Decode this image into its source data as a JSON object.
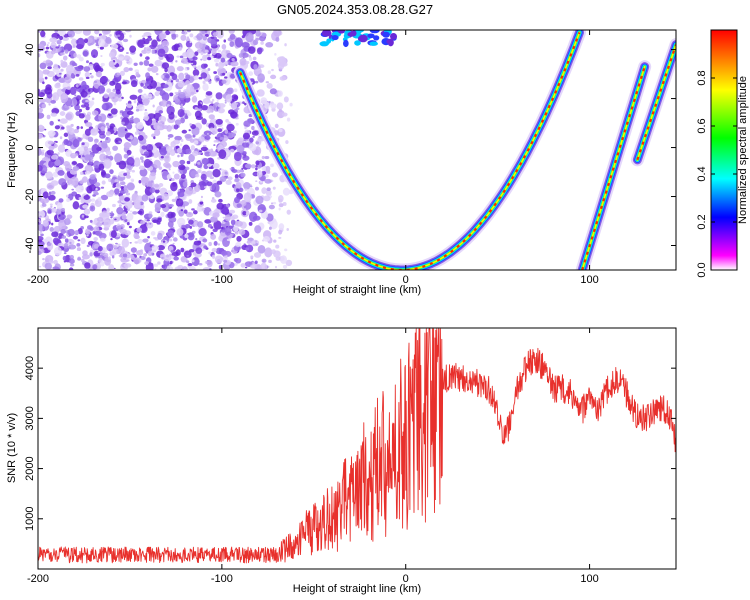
{
  "title": "GN05.2024.353.08.28.G27",
  "chart_data": [
    {
      "type": "heatmap",
      "xlabel": "Height of straight line (km)",
      "ylabel": "Frequency (Hz)",
      "xlim": [
        -200,
        147
      ],
      "ylim": [
        -50,
        48
      ],
      "xticks": [
        -200,
        -100,
        0,
        100
      ],
      "yticks": [
        -40,
        -20,
        0,
        20,
        40
      ],
      "colorbar": {
        "label": "Normalized spectral amplitude",
        "range": [
          0,
          1
        ],
        "ticks": [
          0.0,
          0.2,
          0.4,
          0.6,
          0.8
        ],
        "tick_labels": [
          "0.0",
          "0.2",
          "0.4",
          "0.6",
          "0.8"
        ],
        "colormap": [
          "#ffffff",
          "#ff00ff",
          "#0000ff",
          "#00ffff",
          "#00ff00",
          "#ffff00",
          "#ff0000"
        ]
      },
      "noise_region": {
        "x": [
          -200,
          -70
        ],
        "y": [
          -50,
          48
        ]
      },
      "tracks": [
        {
          "shape": "parabola",
          "vertex_x": -2,
          "vertex_y": -50,
          "x_range": [
            -90,
            95
          ],
          "y_end": 48
        },
        {
          "shape": "line",
          "points": [
            [
              96,
              -50
            ],
            [
              130,
              33
            ]
          ]
        },
        {
          "shape": "line",
          "points": [
            [
              126,
              -5
            ],
            [
              147,
              42
            ]
          ]
        }
      ]
    },
    {
      "type": "line",
      "xlabel": "Height of straight line (km)",
      "ylabel": "SNR (10 * v/v)",
      "xlim": [
        -200,
        147
      ],
      "ylim": [
        0,
        4800
      ],
      "xticks": [
        -200,
        -100,
        0,
        100
      ],
      "yticks": [
        1000,
        2000,
        3000,
        4000
      ],
      "color": "#e8302c",
      "baseline": {
        "x": [
          -200,
          -68
        ],
        "y": 250
      },
      "envelope": [
        [
          -200,
          250
        ],
        [
          -100,
          250
        ],
        [
          -70,
          280
        ],
        [
          -60,
          500
        ],
        [
          -50,
          800
        ],
        [
          -40,
          1000
        ],
        [
          -30,
          1400
        ],
        [
          -20,
          1800
        ],
        [
          -10,
          2200
        ],
        [
          0,
          2600
        ],
        [
          5,
          3000
        ],
        [
          10,
          3300
        ],
        [
          15,
          3500
        ],
        [
          20,
          3750
        ],
        [
          25,
          3850
        ],
        [
          30,
          3800
        ],
        [
          40,
          3700
        ],
        [
          45,
          3600
        ],
        [
          50,
          3100
        ],
        [
          53,
          2600
        ],
        [
          57,
          2900
        ],
        [
          60,
          3500
        ],
        [
          65,
          4000
        ],
        [
          70,
          4200
        ],
        [
          75,
          4000
        ],
        [
          80,
          3600
        ],
        [
          85,
          3600
        ],
        [
          90,
          3500
        ],
        [
          95,
          3100
        ],
        [
          100,
          3400
        ],
        [
          105,
          3200
        ],
        [
          110,
          3600
        ],
        [
          115,
          3800
        ],
        [
          120,
          3500
        ],
        [
          125,
          3100
        ],
        [
          130,
          3000
        ],
        [
          140,
          3200
        ],
        [
          145,
          3000
        ],
        [
          147,
          2400
        ]
      ]
    }
  ]
}
